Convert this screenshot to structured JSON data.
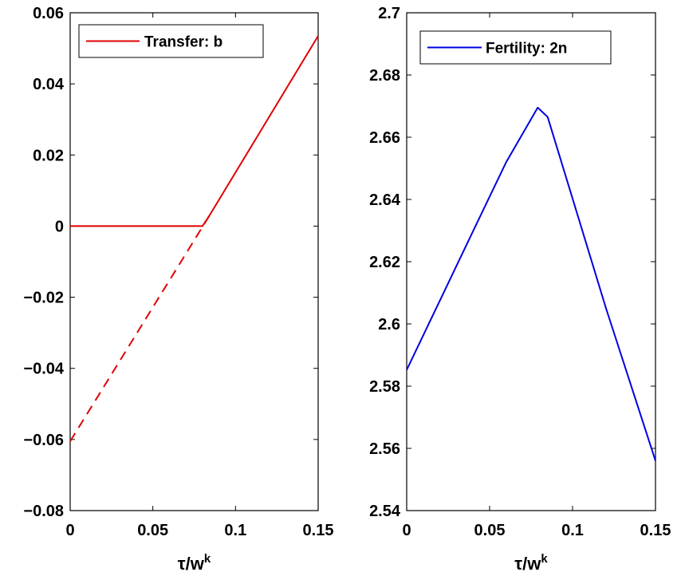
{
  "chart_data": [
    {
      "type": "line",
      "xlabel": "τ/w",
      "xlabel_superscript": "k",
      "ylabel": "",
      "xlim": [
        0,
        0.15
      ],
      "ylim": [
        -0.08,
        0.06
      ],
      "xticks": [
        0,
        0.05,
        0.1,
        0.15
      ],
      "xtick_labels": [
        "0",
        "0.05",
        "0.1",
        "0.15"
      ],
      "yticks": [
        -0.08,
        -0.06,
        -0.04,
        -0.02,
        0,
        0.02,
        0.04,
        0.06
      ],
      "ytick_labels": [
        "−0.08",
        "−0.06",
        "−0.04",
        "−0.02",
        "0",
        "0.02",
        "0.04",
        "0.06"
      ],
      "grid": false,
      "legend_position": "top-left",
      "series": [
        {
          "name": "Transfer: b",
          "color": "#e00000",
          "style": "solid",
          "x": [
            0,
            0.08,
            0.084,
            0.15
          ],
          "y": [
            0,
            0,
            0.0028,
            0.0535
          ]
        },
        {
          "color": "#e00000",
          "style": "dashed",
          "x": [
            0,
            0.084
          ],
          "y": [
            -0.0605,
            0.0028
          ]
        }
      ]
    },
    {
      "type": "line",
      "xlabel": "τ/w",
      "xlabel_superscript": "k",
      "ylabel": "",
      "xlim": [
        0,
        0.15
      ],
      "ylim": [
        2.54,
        2.7
      ],
      "xticks": [
        0,
        0.05,
        0.1,
        0.15
      ],
      "xtick_labels": [
        "0",
        "0.05",
        "0.1",
        "0.15"
      ],
      "yticks": [
        2.54,
        2.56,
        2.58,
        2.6,
        2.62,
        2.64,
        2.66,
        2.68,
        2.7
      ],
      "ytick_labels": [
        "2.54",
        "2.56",
        "2.58",
        "2.6",
        "2.62",
        "2.64",
        "2.66",
        "2.68",
        "2.7"
      ],
      "grid": false,
      "legend_position": "top-left",
      "series": [
        {
          "name": "Fertility: 2n",
          "color": "#0000e0",
          "style": "solid",
          "x": [
            0,
            0.02,
            0.04,
            0.06,
            0.079,
            0.085,
            0.1,
            0.12,
            0.15
          ],
          "y": [
            2.5852,
            2.6075,
            2.6298,
            2.652,
            2.6695,
            2.6665,
            2.6403,
            2.6053,
            2.556
          ]
        }
      ]
    }
  ]
}
